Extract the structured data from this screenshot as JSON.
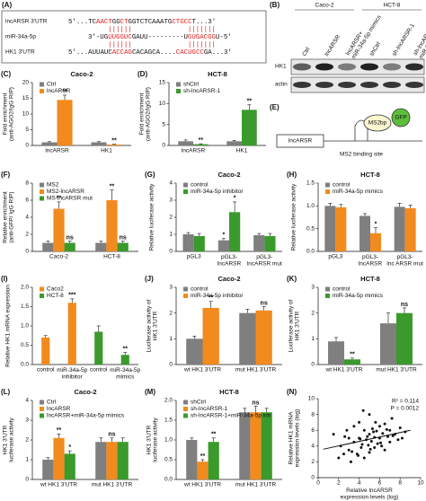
{
  "panel_a": {
    "label": "(A)",
    "rows": [
      {
        "name": "lncARSR 3'UTR",
        "segments": [
          {
            "text": "5'...TC",
            "color": "#111111"
          },
          {
            "text": "AACT",
            "color": "#e02020"
          },
          {
            "text": "GG",
            "color": "#111111"
          },
          {
            "text": "CT",
            "color": "#e02020"
          },
          {
            "text": "GGTCTCAAATG",
            "color": "#111111"
          },
          {
            "text": "CTGCC",
            "color": "#e02020"
          },
          {
            "text": "T...3'",
            "color": "#111111"
          }
        ]
      },
      {
        "name": "miR-34a-5p",
        "segments": [
          {
            "text": "3'-UG",
            "color": "#111111"
          },
          {
            "text": "UUGGUC",
            "color": "#e02020"
          },
          {
            "text": "GAUU---------U",
            "color": "#111111"
          },
          {
            "text": "GUGACGG",
            "color": "#e02020"
          },
          {
            "text": "U-5'",
            "color": "#111111"
          }
        ]
      },
      {
        "name": "HK1 3'UTR",
        "segments": [
          {
            "text": "5'...AUUAUC",
            "color": "#111111"
          },
          {
            "text": "ACCAG",
            "color": "#e02020"
          },
          {
            "text": "CACAGCA....",
            "color": "#111111"
          },
          {
            "text": "CACUGCC",
            "color": "#e02020"
          },
          {
            "text": "GA...3'",
            "color": "#111111"
          }
        ]
      }
    ]
  },
  "panel_b": {
    "label": "(B)",
    "groups": [
      "Caco-2",
      "HCT-8"
    ],
    "lanes": [
      "Ctrl",
      "lncARSR",
      "lncARSR+\nmiR-34a-5p mimics",
      "shCtrl",
      "sh-lncARSR-1",
      "sh-lncARSR-1+\nmiR-34a-5p inh"
    ],
    "rows": [
      "HK1",
      "actin"
    ]
  },
  "panel_e": {
    "label": "(E)",
    "gene": "lncARSR",
    "site": "MS2 binding site",
    "protein": "MS2bp",
    "tag": "GFP"
  },
  "chart_data": [
    {
      "type": "bar",
      "label": "(C)",
      "title": "Caco-2",
      "ylabel": "Fold enrichment\n(anti-AGO2/IgG RIP)",
      "categories": [
        "lncARSR",
        "HK1"
      ],
      "series": [
        {
          "name": "Ctrl",
          "color": "#7f7f7f",
          "values": [
            1,
            1
          ],
          "errors": [
            0.2,
            0.2
          ]
        },
        {
          "name": "lncARSR",
          "color": "#f28a1e",
          "values": [
            14.5,
            0.3
          ],
          "errors": [
            1.5,
            0.1
          ],
          "sig": [
            "**",
            "**"
          ]
        }
      ],
      "ylim": [
        0,
        20
      ],
      "yticks": [
        0,
        5,
        10,
        15,
        20
      ]
    },
    {
      "type": "bar",
      "label": "(D)",
      "title": "HCT-8",
      "ylabel": "Fold enrichment\n(anti-AGO2/IgG RIP)",
      "categories": [
        "lncARSR",
        "HK1"
      ],
      "series": [
        {
          "name": "shCtrl",
          "color": "#7f7f7f",
          "values": [
            1,
            1
          ],
          "errors": [
            0.3,
            0.2
          ]
        },
        {
          "name": "sh-lncARSR-1",
          "color": "#3a9a2b",
          "values": [
            0.3,
            8.5
          ],
          "errors": [
            0.1,
            1.2
          ],
          "sig": [
            "**",
            "**"
          ]
        }
      ],
      "ylim": [
        0,
        15
      ],
      "yticks": [
        0,
        5,
        10,
        15
      ]
    },
    {
      "type": "bar",
      "label": "(F)",
      "ylabel": "Relative enrichment\n(anti-GFP/ IgG RIP)",
      "categories": [
        "Caco-2",
        "HCT-8"
      ],
      "series": [
        {
          "name": "MS2",
          "color": "#7f7f7f",
          "values": [
            1,
            1
          ],
          "errors": [
            0.2,
            0.2
          ]
        },
        {
          "name": "MS2-lncARSR",
          "color": "#f28a1e",
          "values": [
            5,
            6
          ],
          "errors": [
            0.8,
            1.2
          ],
          "sig": [
            "**",
            "**"
          ]
        },
        {
          "name": "MS-lncARSR mut",
          "color": "#3a9a2b",
          "values": [
            1,
            1
          ],
          "errors": [
            0.2,
            0.2
          ],
          "sig": [
            "ns",
            "ns"
          ]
        }
      ],
      "ylim": [
        0,
        8
      ],
      "yticks": [
        0,
        2,
        4,
        6,
        8
      ]
    },
    {
      "type": "bar",
      "label": "(G)",
      "title": "Caco-2",
      "ylabel": "Relative luciferase activity",
      "categories": [
        "pGL3",
        "pGL3-\nlncARSR",
        "pGL3-\nlncARSR mut"
      ],
      "series": [
        {
          "name": "control",
          "color": "#7f7f7f",
          "values": [
            1,
            0.65,
            0.95
          ],
          "errors": [
            0.1,
            0.1,
            0.1
          ],
          "sig": [
            null,
            "*",
            null
          ]
        },
        {
          "name": "miR-34a-5p inhibitor",
          "color": "#3a9a2b",
          "values": [
            0.9,
            2.3,
            0.9
          ],
          "errors": [
            0.15,
            0.6,
            0.15
          ],
          "sig": [
            null,
            "*",
            null
          ]
        }
      ],
      "ylim": [
        0,
        4
      ],
      "yticks": [
        0,
        1,
        2,
        3,
        4
      ]
    },
    {
      "type": "bar",
      "label": "(H)",
      "title": "HCT-8",
      "ylabel": "Relative luciferase activity",
      "categories": [
        "pGL3",
        "pGL3-\nlncARSR",
        "pGL3-\nlnc ARSR mut"
      ],
      "series": [
        {
          "name": "control",
          "color": "#7f7f7f",
          "values": [
            1,
            0.78,
            0.98
          ],
          "errors": [
            0.06,
            0.05,
            0.08
          ]
        },
        {
          "name": "miR-34a-5p mimics",
          "color": "#f28a1e",
          "values": [
            0.97,
            0.4,
            0.95
          ],
          "errors": [
            0.06,
            0.12,
            0.07
          ],
          "sig": [
            null,
            "*",
            null
          ]
        }
      ],
      "ylim": [
        0,
        1.5
      ],
      "yticks": [
        {
          "value": 0,
          "label": "0.0"
        },
        {
          "value": 0.5,
          "label": "0.5"
        },
        {
          "value": 1,
          "label": "1.0"
        },
        {
          "value": 1.5,
          "label": "1.5"
        }
      ]
    },
    {
      "type": "bar",
      "label": "(I)",
      "ylabel": "Relative HK1 mRNA expression",
      "categories": [
        "control",
        "miR-34a-5p\ninhibitor",
        "control",
        "miR-34a-5p\nmimics"
      ],
      "series": [
        {
          "name": "Caco2",
          "color": "#f28a1e",
          "values": [
            0.7,
            1.6,
            null,
            null
          ],
          "errors": [
            0.05,
            0.1,
            null,
            null
          ],
          "sig": [
            null,
            "***",
            null,
            null
          ]
        },
        {
          "name": "HCT-8",
          "color": "#3a9a2b",
          "values": [
            null,
            null,
            0.85,
            0.25
          ],
          "errors": [
            null,
            null,
            0.15,
            0.06
          ],
          "sig": [
            null,
            null,
            null,
            "**"
          ]
        }
      ],
      "ylim": [
        0,
        2
      ],
      "yticks": [
        {
          "value": 0,
          "label": "0.0"
        },
        {
          "value": 0.5,
          "label": "0.5"
        },
        {
          "value": 1,
          "label": "1.0"
        },
        {
          "value": 1.5,
          "label": "1.5"
        },
        {
          "value": 2,
          "label": "2.0"
        }
      ]
    },
    {
      "type": "bar",
      "label": "(J)",
      "title": "Caco-2",
      "ylabel": "Luciferase activity of\nHK1 3'UTR",
      "categories": [
        "wt HK1 3'UTR",
        "mut HK1 3'UTR"
      ],
      "series": [
        {
          "name": "control",
          "color": "#7f7f7f",
          "values": [
            1,
            2
          ],
          "errors": [
            0.1,
            0.15
          ]
        },
        {
          "name": "miR-34a-5p inhibitor",
          "color": "#f28a1e",
          "values": [
            2.2,
            2.1
          ],
          "errors": [
            0.25,
            0.15
          ],
          "sig": [
            "**",
            "ns"
          ]
        }
      ],
      "ylim": [
        0,
        3
      ],
      "yticks": [
        0,
        1,
        2,
        3
      ]
    },
    {
      "type": "bar",
      "label": "(K)",
      "title": "HCT-8",
      "ylabel": "Luciferase activity of\nHK1 3'UTR",
      "categories": [
        "wt HK1 3'UTR",
        "mut HK1 3'UTR"
      ],
      "series": [
        {
          "name": "control",
          "color": "#7f7f7f",
          "values": [
            0.9,
            1.6
          ],
          "errors": [
            0.15,
            0.4
          ]
        },
        {
          "name": "miR-34a-5p mimics",
          "color": "#3a9a2b",
          "values": [
            0.2,
            2.0
          ],
          "errors": [
            0.05,
            0.2
          ],
          "sig": [
            "**",
            "ns"
          ]
        }
      ],
      "ylim": [
        0,
        3
      ],
      "yticks": [
        0,
        1,
        2,
        3
      ]
    },
    {
      "type": "bar",
      "label": "(L)",
      "title": "Caco-2",
      "ylabel": "HK1 3'UTR\nluciferase activity",
      "categories": [
        "wt HK1 3'UTR",
        "mut HK1 3'UTR"
      ],
      "series": [
        {
          "name": "Ctrl",
          "color": "#7f7f7f",
          "values": [
            1,
            1.9
          ],
          "errors": [
            0.1,
            0.2
          ]
        },
        {
          "name": "lncARSR",
          "color": "#f28a1e",
          "values": [
            2.1,
            1.9
          ],
          "errors": [
            0.2,
            0.2
          ],
          "sig": [
            "**",
            "ns"
          ]
        },
        {
          "name": "lncARSR+miR-34a-5p mimics",
          "color": "#3a9a2b",
          "values": [
            1.3,
            1.9
          ],
          "errors": [
            0.15,
            0.2
          ],
          "sig": [
            "*",
            null
          ]
        }
      ],
      "ylim": [
        0,
        4
      ],
      "yticks": [
        0,
        1,
        2,
        3,
        4
      ]
    },
    {
      "type": "bar",
      "label": "(M)",
      "title": "HCT-8",
      "ylabel": "HK1 3'UTR\nluciferase activity",
      "categories": [
        "wt HK1 3'UTR",
        "mut HK1 3'UTR"
      ],
      "series": [
        {
          "name": "shCtrl",
          "color": "#7f7f7f",
          "values": [
            1,
            1.7
          ],
          "errors": [
            0.05,
            0.1
          ]
        },
        {
          "name": "sh-lncARSR-1",
          "color": "#f28a1e",
          "values": [
            0.45,
            1.7
          ],
          "errors": [
            0.05,
            0.15
          ],
          "sig": [
            "**",
            "ns"
          ]
        },
        {
          "name": "sh-lncARSR-1+miR-34a-5p inh",
          "color": "#3a9a2b",
          "values": [
            0.95,
            1.7
          ],
          "errors": [
            0.1,
            0.1
          ],
          "sig": [
            "**",
            null
          ]
        }
      ],
      "ylim": [
        0,
        2
      ],
      "yticks": [
        {
          "value": 0,
          "label": "0.0"
        },
        {
          "value": 0.5,
          "label": "0.5"
        },
        {
          "value": 1,
          "label": "1.0"
        },
        {
          "value": 1.5,
          "label": "1.5"
        },
        {
          "value": 2,
          "label": "2.0"
        }
      ]
    },
    {
      "type": "scatter",
      "label": "(N)",
      "ylabel": "Relative HK1 mRNA\nexpression levels (log)",
      "xlabel": "Relative lncARSR\nexpression levels (log)",
      "annotations": [
        "R² = 0.114",
        "P = 0.0012"
      ],
      "color": "#111111",
      "x": [
        1.5,
        2,
        2.2,
        2.5,
        2.8,
        3,
        3,
        3.2,
        3.5,
        3.5,
        3.8,
        4,
        4,
        4.2,
        4.3,
        4.5,
        4.5,
        4.7,
        4.8,
        5,
        5,
        5,
        5.2,
        5.3,
        5.5,
        5.5,
        5.6,
        5.8,
        6,
        6,
        6.2,
        6.3,
        6.5,
        6.5,
        6.8,
        7,
        7,
        7.2,
        7.5,
        7.8,
        8,
        8.2,
        8.5,
        3.3,
        4.1,
        4.9,
        5.7,
        6.1,
        2.6,
        3.9,
        5.4,
        6.7,
        7.3,
        4.4,
        5.1
      ],
      "y": [
        5.5,
        2.5,
        4,
        3,
        6,
        3.5,
        5,
        2,
        4.5,
        6.5,
        3,
        5,
        7,
        3.8,
        4.2,
        2.5,
        6,
        4.8,
        5.2,
        3.2,
        5.5,
        8,
        4.6,
        6.2,
        3.8,
        5.1,
        7,
        4.3,
        5,
        6.5,
        4,
        5.6,
        3.5,
        6.8,
        5.2,
        4.5,
        6,
        7.5,
        5.5,
        4.8,
        6.3,
        5,
        5.8,
        3.3,
        4.9,
        4.1,
        5.9,
        4.4,
        5.2,
        2.8,
        5.8,
        6.1,
        5.3,
        8.5,
        3.6
      ],
      "trend": {
        "x": [
          0.5,
          9
        ],
        "y": [
          3.6,
          6.0
        ]
      },
      "xlim": [
        0,
        10
      ],
      "xticks": [
        0,
        2,
        4,
        6,
        8,
        10
      ],
      "ylim": [
        0,
        10
      ],
      "yticks": [
        0,
        2,
        4,
        6,
        8,
        10
      ]
    }
  ]
}
